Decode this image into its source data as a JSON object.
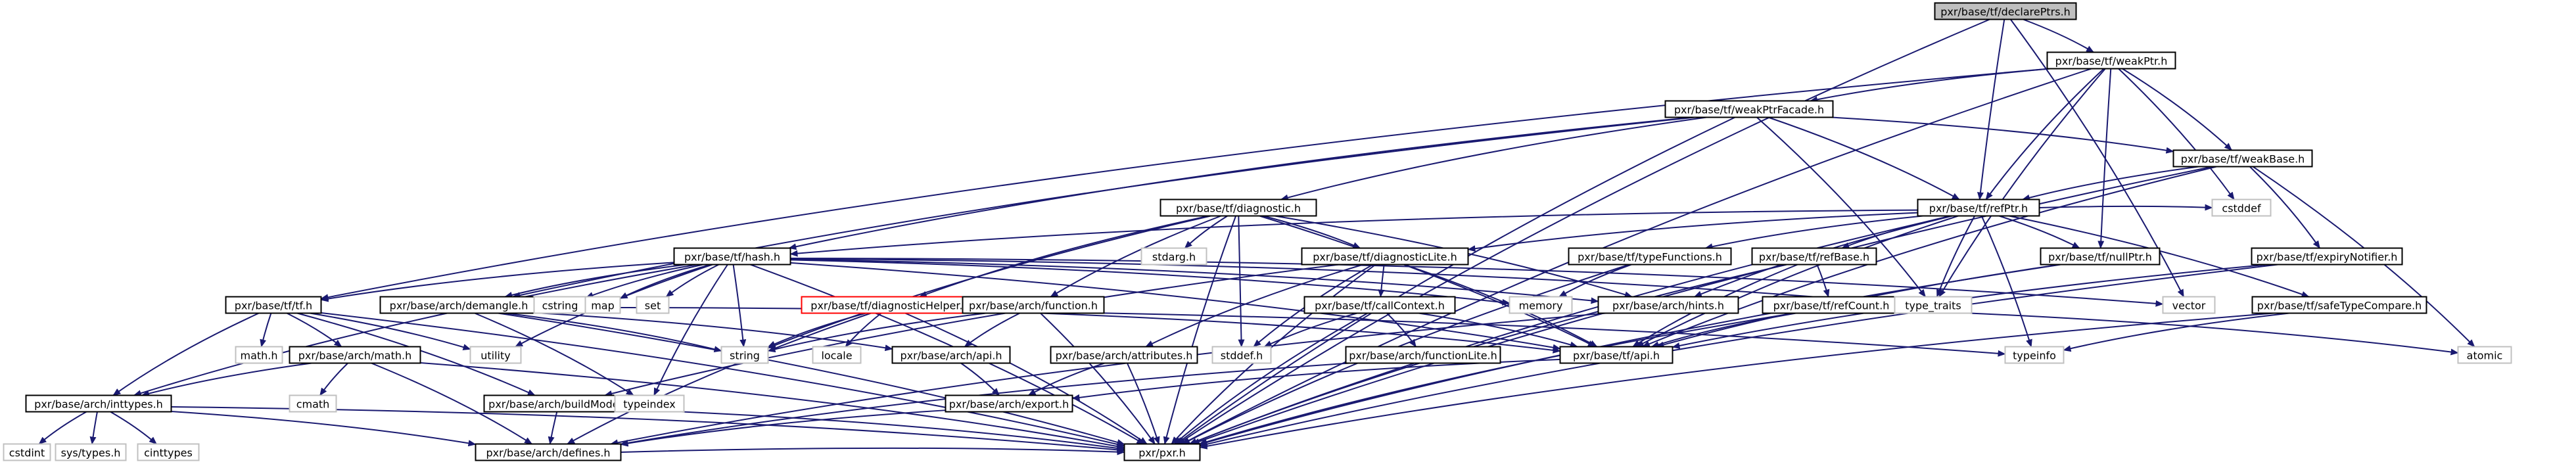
{
  "graph": {
    "title": "pxr/base/tf/declarePtrs.h",
    "edge_color": "#191970",
    "highlight_color": "#ff0000",
    "nodes": [
      {
        "id": "declarePtrs",
        "label": "pxr/base/tf/declarePtrs.h",
        "kind": "root"
      },
      {
        "id": "weakPtr",
        "label": "pxr/base/tf/weakPtr.h",
        "kind": "doc"
      },
      {
        "id": "weakPtrFacade",
        "label": "pxr/base/tf/weakPtrFacade.h",
        "kind": "doc"
      },
      {
        "id": "weakBase",
        "label": "pxr/base/tf/weakBase.h",
        "kind": "doc"
      },
      {
        "id": "diagnostic",
        "label": "pxr/base/tf/diagnostic.h",
        "kind": "doc"
      },
      {
        "id": "refPtr",
        "label": "pxr/base/tf/refPtr.h",
        "kind": "doc"
      },
      {
        "id": "hash",
        "label": "pxr/base/tf/hash.h",
        "kind": "doc"
      },
      {
        "id": "diagnosticLite",
        "label": "pxr/base/tf/diagnosticLite.h",
        "kind": "doc"
      },
      {
        "id": "typeFunctions",
        "label": "pxr/base/tf/typeFunctions.h",
        "kind": "doc"
      },
      {
        "id": "refBase",
        "label": "pxr/base/tf/refBase.h",
        "kind": "doc"
      },
      {
        "id": "nullPtr",
        "label": "pxr/base/tf/nullPtr.h",
        "kind": "doc"
      },
      {
        "id": "expiryNotifier",
        "label": "pxr/base/tf/expiryNotifier.h",
        "kind": "doc"
      },
      {
        "id": "tf",
        "label": "pxr/base/tf/tf.h",
        "kind": "doc"
      },
      {
        "id": "demangle",
        "label": "pxr/base/arch/demangle.h",
        "kind": "doc"
      },
      {
        "id": "diagnosticHelper",
        "label": "pxr/base/tf/diagnosticHelper.h",
        "kind": "highlight"
      },
      {
        "id": "function",
        "label": "pxr/base/arch/function.h",
        "kind": "doc"
      },
      {
        "id": "callContext",
        "label": "pxr/base/tf/callContext.h",
        "kind": "doc"
      },
      {
        "id": "hints",
        "label": "pxr/base/arch/hints.h",
        "kind": "doc"
      },
      {
        "id": "refCount",
        "label": "pxr/base/tf/refCount.h",
        "kind": "doc"
      },
      {
        "id": "safeTypeCompare",
        "label": "pxr/base/tf/safeTypeCompare.h",
        "kind": "doc"
      },
      {
        "id": "archMath",
        "label": "pxr/base/arch/math.h",
        "kind": "doc"
      },
      {
        "id": "archApi",
        "label": "pxr/base/arch/api.h",
        "kind": "doc"
      },
      {
        "id": "attributes",
        "label": "pxr/base/arch/attributes.h",
        "kind": "doc"
      },
      {
        "id": "functionLite",
        "label": "pxr/base/arch/functionLite.h",
        "kind": "doc"
      },
      {
        "id": "tfApi",
        "label": "pxr/base/tf/api.h",
        "kind": "doc"
      },
      {
        "id": "inttypes",
        "label": "pxr/base/arch/inttypes.h",
        "kind": "doc"
      },
      {
        "id": "buildMode",
        "label": "pxr/base/arch/buildMode.h",
        "kind": "doc"
      },
      {
        "id": "archExport",
        "label": "pxr/base/arch/export.h",
        "kind": "doc"
      },
      {
        "id": "defines",
        "label": "pxr/base/arch/defines.h",
        "kind": "doc"
      },
      {
        "id": "pxr",
        "label": "pxr/pxr.h",
        "kind": "doc"
      },
      {
        "id": "cstddef",
        "label": "cstddef",
        "kind": "system"
      },
      {
        "id": "stdarg",
        "label": "stdarg.h",
        "kind": "system"
      },
      {
        "id": "memory",
        "label": "memory",
        "kind": "system"
      },
      {
        "id": "type_traits",
        "label": "type_traits",
        "kind": "system"
      },
      {
        "id": "vector",
        "label": "vector",
        "kind": "system"
      },
      {
        "id": "atomic",
        "label": "atomic",
        "kind": "system"
      },
      {
        "id": "typeinfo",
        "label": "typeinfo",
        "kind": "system"
      },
      {
        "id": "cstring",
        "label": "cstring",
        "kind": "system"
      },
      {
        "id": "map",
        "label": "map",
        "kind": "system"
      },
      {
        "id": "set",
        "label": "set",
        "kind": "system"
      },
      {
        "id": "string",
        "label": "string",
        "kind": "system"
      },
      {
        "id": "typeindex",
        "label": "typeindex",
        "kind": "system"
      },
      {
        "id": "utility",
        "label": "utility",
        "kind": "system"
      },
      {
        "id": "locale",
        "label": "locale",
        "kind": "system"
      },
      {
        "id": "stddef",
        "label": "stddef.h",
        "kind": "system"
      },
      {
        "id": "mathh",
        "label": "math.h",
        "kind": "system"
      },
      {
        "id": "cmath",
        "label": "cmath",
        "kind": "system"
      },
      {
        "id": "cstdint",
        "label": "cstdint",
        "kind": "system"
      },
      {
        "id": "systypes",
        "label": "sys/types.h",
        "kind": "system"
      },
      {
        "id": "cinttypes",
        "label": "cinttypes",
        "kind": "system"
      }
    ],
    "edges": [
      [
        "declarePtrs",
        "weakPtr"
      ],
      [
        "declarePtrs",
        "refPtr"
      ],
      [
        "declarePtrs",
        "pxr"
      ],
      [
        "declarePtrs",
        "vector"
      ],
      [
        "weakPtr",
        "weakPtrFacade"
      ],
      [
        "weakPtr",
        "weakBase"
      ],
      [
        "weakPtr",
        "refPtr"
      ],
      [
        "weakPtr",
        "nullPtr"
      ],
      [
        "weakPtr",
        "tf"
      ],
      [
        "weakPtr",
        "pxr"
      ],
      [
        "weakPtr",
        "cstddef"
      ],
      [
        "weakPtr",
        "type_traits"
      ],
      [
        "weakPtrFacade",
        "weakBase"
      ],
      [
        "weakPtrFacade",
        "diagnostic"
      ],
      [
        "weakPtrFacade",
        "refPtr"
      ],
      [
        "weakPtrFacade",
        "hash"
      ],
      [
        "weakPtrFacade",
        "demangle"
      ],
      [
        "weakPtrFacade",
        "pxr"
      ],
      [
        "weakPtrFacade",
        "type_traits"
      ],
      [
        "weakBase",
        "refPtr"
      ],
      [
        "weakBase",
        "expiryNotifier"
      ],
      [
        "weakBase",
        "tfApi"
      ],
      [
        "weakBase",
        "pxr"
      ],
      [
        "weakBase",
        "atomic"
      ],
      [
        "diagnostic",
        "diagnosticLite"
      ],
      [
        "diagnostic",
        "diagnosticHelper"
      ],
      [
        "diagnostic",
        "function"
      ],
      [
        "diagnostic",
        "hints"
      ],
      [
        "diagnostic",
        "tfApi"
      ],
      [
        "diagnostic",
        "stdarg"
      ],
      [
        "diagnostic",
        "stddef"
      ],
      [
        "diagnostic",
        "string"
      ],
      [
        "diagnostic",
        "pxr"
      ],
      [
        "refPtr",
        "hash"
      ],
      [
        "refPtr",
        "diagnosticLite"
      ],
      [
        "refPtr",
        "typeFunctions"
      ],
      [
        "refPtr",
        "refBase"
      ],
      [
        "refPtr",
        "nullPtr"
      ],
      [
        "refPtr",
        "safeTypeCompare"
      ],
      [
        "refPtr",
        "hints"
      ],
      [
        "refPtr",
        "tfApi"
      ],
      [
        "refPtr",
        "pxr"
      ],
      [
        "refPtr",
        "cstddef"
      ],
      [
        "refPtr",
        "typeinfo"
      ],
      [
        "refPtr",
        "type_traits"
      ],
      [
        "hash",
        "tf"
      ],
      [
        "hash",
        "demangle"
      ],
      [
        "hash",
        "cstring"
      ],
      [
        "hash",
        "map"
      ],
      [
        "hash",
        "set"
      ],
      [
        "hash",
        "string"
      ],
      [
        "hash",
        "typeindex"
      ],
      [
        "hash",
        "utility"
      ],
      [
        "hash",
        "vector"
      ],
      [
        "hash",
        "memory"
      ],
      [
        "hash",
        "type_traits"
      ],
      [
        "hash",
        "tfApi"
      ],
      [
        "hash",
        "hints"
      ],
      [
        "hash",
        "pxr"
      ],
      [
        "hash",
        "inttypes"
      ],
      [
        "diagnosticLite",
        "callContext"
      ],
      [
        "diagnosticLite",
        "attributes"
      ],
      [
        "diagnosticLite",
        "buildMode"
      ],
      [
        "diagnosticLite",
        "tfApi"
      ],
      [
        "diagnosticLite",
        "stddef"
      ],
      [
        "diagnosticLite",
        "pxr"
      ],
      [
        "typeFunctions",
        "memory"
      ],
      [
        "typeFunctions",
        "pxr"
      ],
      [
        "refBase",
        "refCount"
      ],
      [
        "refBase",
        "tfApi"
      ],
      [
        "refBase",
        "pxr"
      ],
      [
        "nullPtr",
        "tfApi"
      ],
      [
        "nullPtr",
        "pxr"
      ],
      [
        "expiryNotifier",
        "tfApi"
      ],
      [
        "expiryNotifier",
        "pxr"
      ],
      [
        "tf",
        "inttypes"
      ],
      [
        "tf",
        "archMath"
      ],
      [
        "tf",
        "buildMode"
      ],
      [
        "tf",
        "mathh"
      ],
      [
        "tf",
        "utility"
      ],
      [
        "tf",
        "pxr"
      ],
      [
        "demangle",
        "archApi"
      ],
      [
        "demangle",
        "string"
      ],
      [
        "demangle",
        "typeindex"
      ],
      [
        "demangle",
        "typeinfo"
      ],
      [
        "demangle",
        "pxr"
      ],
      [
        "diagnosticHelper",
        "tfApi"
      ],
      [
        "diagnosticHelper",
        "string"
      ],
      [
        "diagnosticHelper",
        "locale"
      ],
      [
        "diagnosticHelper",
        "defines"
      ],
      [
        "diagnosticHelper",
        "pxr"
      ],
      [
        "function",
        "archApi"
      ],
      [
        "function",
        "string"
      ],
      [
        "function",
        "pxr"
      ],
      [
        "callContext",
        "functionLite"
      ],
      [
        "callContext",
        "tfApi"
      ],
      [
        "callContext",
        "stddef"
      ],
      [
        "callContext",
        "pxr"
      ],
      [
        "hints",
        "defines"
      ],
      [
        "refCount",
        "tfApi"
      ],
      [
        "refCount",
        "atomic"
      ],
      [
        "refCount",
        "pxr"
      ],
      [
        "safeTypeCompare",
        "typeinfo"
      ],
      [
        "safeTypeCompare",
        "pxr"
      ],
      [
        "archMath",
        "inttypes"
      ],
      [
        "archMath",
        "defines"
      ],
      [
        "archMath",
        "cmath"
      ],
      [
        "archMath",
        "pxr"
      ],
      [
        "archApi",
        "archExport"
      ],
      [
        "attributes",
        "archExport"
      ],
      [
        "attributes",
        "pxr"
      ],
      [
        "functionLite",
        "defines"
      ],
      [
        "tfApi",
        "archExport"
      ],
      [
        "inttypes",
        "defines"
      ],
      [
        "inttypes",
        "cstdint"
      ],
      [
        "inttypes",
        "systypes"
      ],
      [
        "inttypes",
        "cinttypes"
      ],
      [
        "inttypes",
        "pxr"
      ],
      [
        "buildMode",
        "defines"
      ],
      [
        "buildMode",
        "pxr"
      ],
      [
        "archExport",
        "defines"
      ],
      [
        "defines",
        "pxr"
      ]
    ]
  }
}
